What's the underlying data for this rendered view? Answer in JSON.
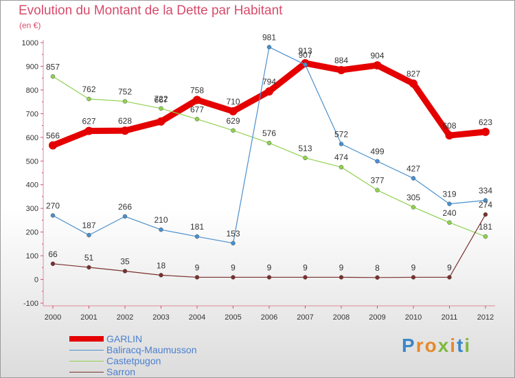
{
  "title": "Evolution du Montant de la Dette par Habitant",
  "unit": "(en €)",
  "logo": {
    "text": "Proxiti",
    "letter_colors": [
      "#3a86c9",
      "#e5892a",
      "#e5892a",
      "#7fb83e",
      "#e5892a",
      "#3a86c9",
      "#7fb83e"
    ]
  },
  "chart_data": {
    "type": "line",
    "title": "Evolution du Montant de la Dette par Habitant",
    "ylabel": "(en €)",
    "xlabel": "",
    "ylim": [
      -100,
      1000
    ],
    "grid": false,
    "legend": "bottom",
    "x": [
      "2000",
      "2001",
      "2002",
      "2003",
      "2004",
      "2005",
      "2006",
      "2007",
      "2008",
      "2009",
      "2010",
      "2011",
      "2012"
    ],
    "yticks": [
      "-100",
      "0",
      "100",
      "200",
      "300",
      "400",
      "500",
      "600",
      "700",
      "800",
      "900",
      "1000"
    ],
    "series": [
      {
        "name": "GARLIN",
        "color": "#e50000",
        "values": [
          566,
          627,
          628,
          667,
          758,
          710,
          794,
          913,
          884,
          904,
          827,
          608,
          623
        ],
        "labels": [
          "566",
          "627",
          "628",
          "",
          "758",
          "710",
          "794",
          "",
          "884",
          "904",
          "827",
          "608",
          "623"
        ]
      },
      {
        "name": "Baliracq-Maumusson",
        "color": "#4a8fcc",
        "values": [
          270,
          187,
          266,
          210,
          181,
          153,
          981,
          907,
          572,
          499,
          427,
          319,
          334
        ],
        "labels": [
          "270",
          "187",
          "266",
          "210",
          "181",
          "153",
          "981",
          "907",
          "572",
          "499",
          "427",
          "319",
          "334"
        ]
      },
      {
        "name": "Castetpugon",
        "color": "#8fd14f",
        "values": [
          857,
          762,
          752,
          722,
          677,
          629,
          576,
          513,
          474,
          377,
          305,
          240,
          181
        ],
        "labels": [
          "857",
          "762",
          "752",
          "722",
          "677",
          "629",
          "576",
          "513",
          "474",
          "377",
          "305",
          "240",
          "181"
        ]
      },
      {
        "name": "Sarron",
        "color": "#7a2f2f",
        "values": [
          66,
          51,
          35,
          18,
          9,
          9,
          9,
          9,
          9,
          8,
          9,
          9,
          274
        ],
        "labels": [
          "66",
          "51",
          "35",
          "18",
          "9",
          "9",
          "9",
          "9",
          "9",
          "8",
          "9",
          "9",
          "274"
        ]
      }
    ],
    "overlapping_labels": [
      {
        "text": "913"
      },
      {
        "text": "667"
      }
    ]
  }
}
